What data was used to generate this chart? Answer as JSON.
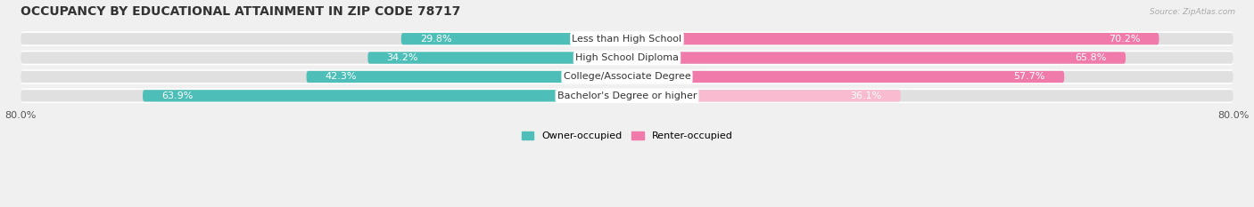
{
  "title": "OCCUPANCY BY EDUCATIONAL ATTAINMENT IN ZIP CODE 78717",
  "source": "Source: ZipAtlas.com",
  "categories": [
    "Less than High School",
    "High School Diploma",
    "College/Associate Degree",
    "Bachelor's Degree or higher"
  ],
  "owner_pct": [
    29.8,
    34.2,
    42.3,
    63.9
  ],
  "renter_pct": [
    70.2,
    65.8,
    57.7,
    36.1
  ],
  "owner_color": "#4DBFB8",
  "renter_color": "#F07AAA",
  "renter_color_light": "#F8BBD0",
  "background_color": "#f0f0f0",
  "bar_background_color": "#e0e0e0",
  "bar_outer_color": "#d8d8d8",
  "xlim_left": -80,
  "xlim_right": 80,
  "bar_height": 0.62,
  "title_fontsize": 10,
  "label_fontsize": 8,
  "value_fontsize": 8,
  "legend_fontsize": 8,
  "owner_val_color": "#555555",
  "renter_val_color": "#555555"
}
